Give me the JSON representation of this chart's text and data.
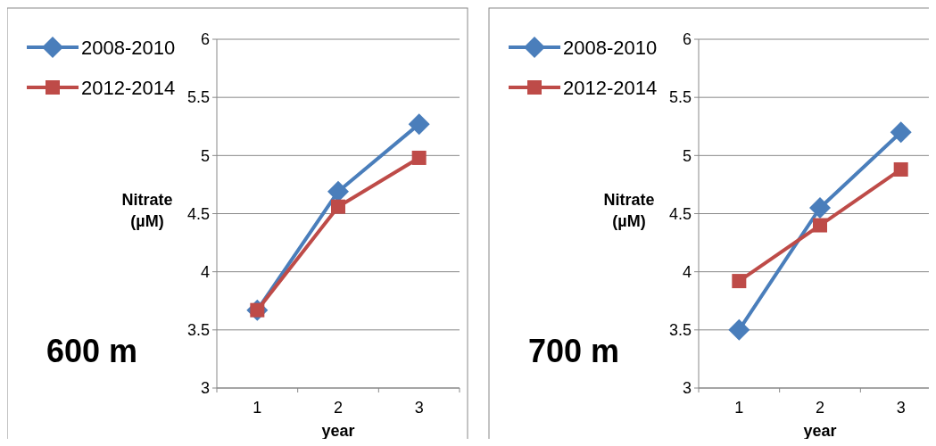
{
  "chart_data": [
    {
      "type": "line",
      "ylabel": "Nitrate (µM)",
      "xlabel": "year",
      "annotations": [
        "600 m"
      ],
      "categories": [
        "1",
        "2",
        "3"
      ],
      "ylim": [
        3,
        6
      ],
      "yticks": [
        3,
        3.5,
        4,
        4.5,
        5,
        5.5,
        6
      ],
      "grid": "y",
      "legend": "top left",
      "series": [
        {
          "name": "2008-2010",
          "color": "#4a7ebb",
          "marker": "diamond",
          "values": [
            3.67,
            4.69,
            5.27
          ]
        },
        {
          "name": "2012-2014",
          "color": "#be4b48",
          "marker": "square",
          "values": [
            3.67,
            4.56,
            4.98
          ]
        }
      ]
    },
    {
      "type": "line",
      "ylabel": "Nitrate (µM)",
      "xlabel": "year",
      "annotations": [
        "700 m"
      ],
      "categories": [
        "1",
        "2",
        "3"
      ],
      "ylim": [
        3,
        6
      ],
      "yticks": [
        3,
        3.5,
        4,
        4.5,
        5,
        5.5,
        6
      ],
      "grid": "y",
      "legend": "top left",
      "series": [
        {
          "name": "2008-2010",
          "color": "#4a7ebb",
          "marker": "diamond",
          "values": [
            3.5,
            4.55,
            5.2
          ]
        },
        {
          "name": "2012-2014",
          "color": "#be4b48",
          "marker": "square",
          "values": [
            3.92,
            4.4,
            4.88
          ]
        }
      ]
    }
  ]
}
